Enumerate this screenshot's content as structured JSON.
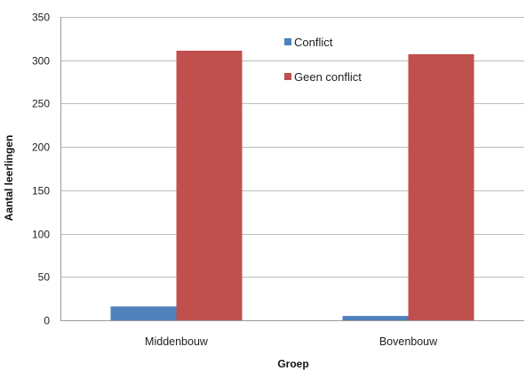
{
  "chart_data": {
    "type": "bar",
    "title": "",
    "xlabel": "Groep",
    "ylabel": "Aantal leerlingen",
    "categories": [
      "Middenbouw",
      "Bovenbouw"
    ],
    "series": [
      {
        "name": "Conflict",
        "values": [
          16,
          5
        ],
        "color": "#4f81bd"
      },
      {
        "name": "Geen conflict",
        "values": [
          311,
          307
        ],
        "color": "#c0504d"
      }
    ],
    "ylim": [
      0,
      350
    ],
    "yticks": [
      0,
      50,
      100,
      150,
      200,
      250,
      300,
      350
    ],
    "grid": true,
    "legend_position": "top-center"
  }
}
